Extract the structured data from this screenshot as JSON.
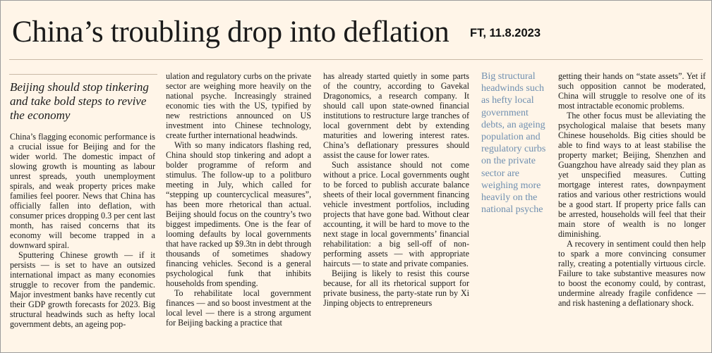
{
  "headline": "China’s troubling drop into deflation",
  "source": "FT, 11.8.2023",
  "standfirst": "Beijing should stop tinkering and take bold steps to revive the economy",
  "pullquote": "Big structural headwinds such as hefty local government debts, an ageing population and regulatory curbs on the private sector are weighing more heavily on the national psyche",
  "col1": {
    "p1": "China’s flagging economic performance is a crucial issue for Beijing and for the wider world. The domestic impact of slowing growth is mounting as labour unrest spreads, youth unemployment spirals, and weak property prices make families feel poorer. News that China has officially fallen into deflation, with consumer prices dropping 0.3 per cent last month, has raised concerns that its economy will become trapped in a downward spiral.",
    "p2": "Sputtering Chinese growth — if it persists — is set to have an outsized international impact as many economies struggle to recover from the pandemic. Major investment banks have recently cut their GDP growth forecasts for 2023. Big structural headwinds such as hefty local government debts, an ageing pop-"
  },
  "col2": {
    "p1": "ulation and regulatory curbs on the private sector are weighing more heavily on the national psyche. Increasingly strained economic ties with the US, typified by new restrictions announced on US investment into Chinese technology, create further international headwinds.",
    "p2": "With so many indicators flashing red, China should stop tinkering and adopt a bolder programme of reform and stimulus. The follow-up to a politburo meeting in July, which called for “stepping up countercyclical measures”, has been more rhetorical than actual. Beijing should focus on the country’s two biggest impediments. One is the fear of looming defaults by local governments that have racked up $9.3tn in debt through thousands of sometimes shadowy financing vehicles. Second is a general psychological funk that inhibits households from spending.",
    "p3": "To rehabilitate local government finances — and so boost investment at the local level — there is a strong argument for Beijing backing a practice that"
  },
  "col3": {
    "p1": "has already started quietly in some parts of the country, according to Gavekal Dragonomics, a research company. It should call upon state-owned financial institutions to restructure large tranches of local government debt by extending maturities and lowering interest rates. China’s deflationary pressures should assist the cause for lower rates.",
    "p2": "Such assistance should not come without a price. Local governments ought to be forced to publish accurate balance sheets of their local government financing vehicle investment portfolios, including projects that have gone bad. Without clear accounting, it will be hard to move to the next stage in local governments’ financial rehabilitation: a big sell-off of non-performing assets — with appropriate haircuts — to state and private companies.",
    "p3": "Beijing is likely to resist this course because, for all its rhetorical support for private business, the party-state run by Xi Jinping objects to entrepreneurs"
  },
  "col5": {
    "p1": "getting their hands on “state assets”. Yet if such opposition cannot be moderated, China will struggle to resolve one of its most intractable economic problems.",
    "p2": "The other focus must be alleviating the psychological malaise that besets many Chinese households. Big cities should be able to find ways to at least stabilise the property market; Beijing, Shenzhen and Guangzhou have already said they plan as yet unspecified measures. Cutting mortgage interest rates, downpayment ratios and various other restrictions would be a good start. If property price falls can be arrested, households will feel that their main store of wealth is no longer diminishing.",
    "p3": "A recovery in sentiment could then help to spark a more convincing consumer rally, creating a potentially virtuous circle. Failure to take substantive measures now to boost the economy could, by contrast, undermine already fragile confidence — and risk hastening a deflationary shock."
  }
}
